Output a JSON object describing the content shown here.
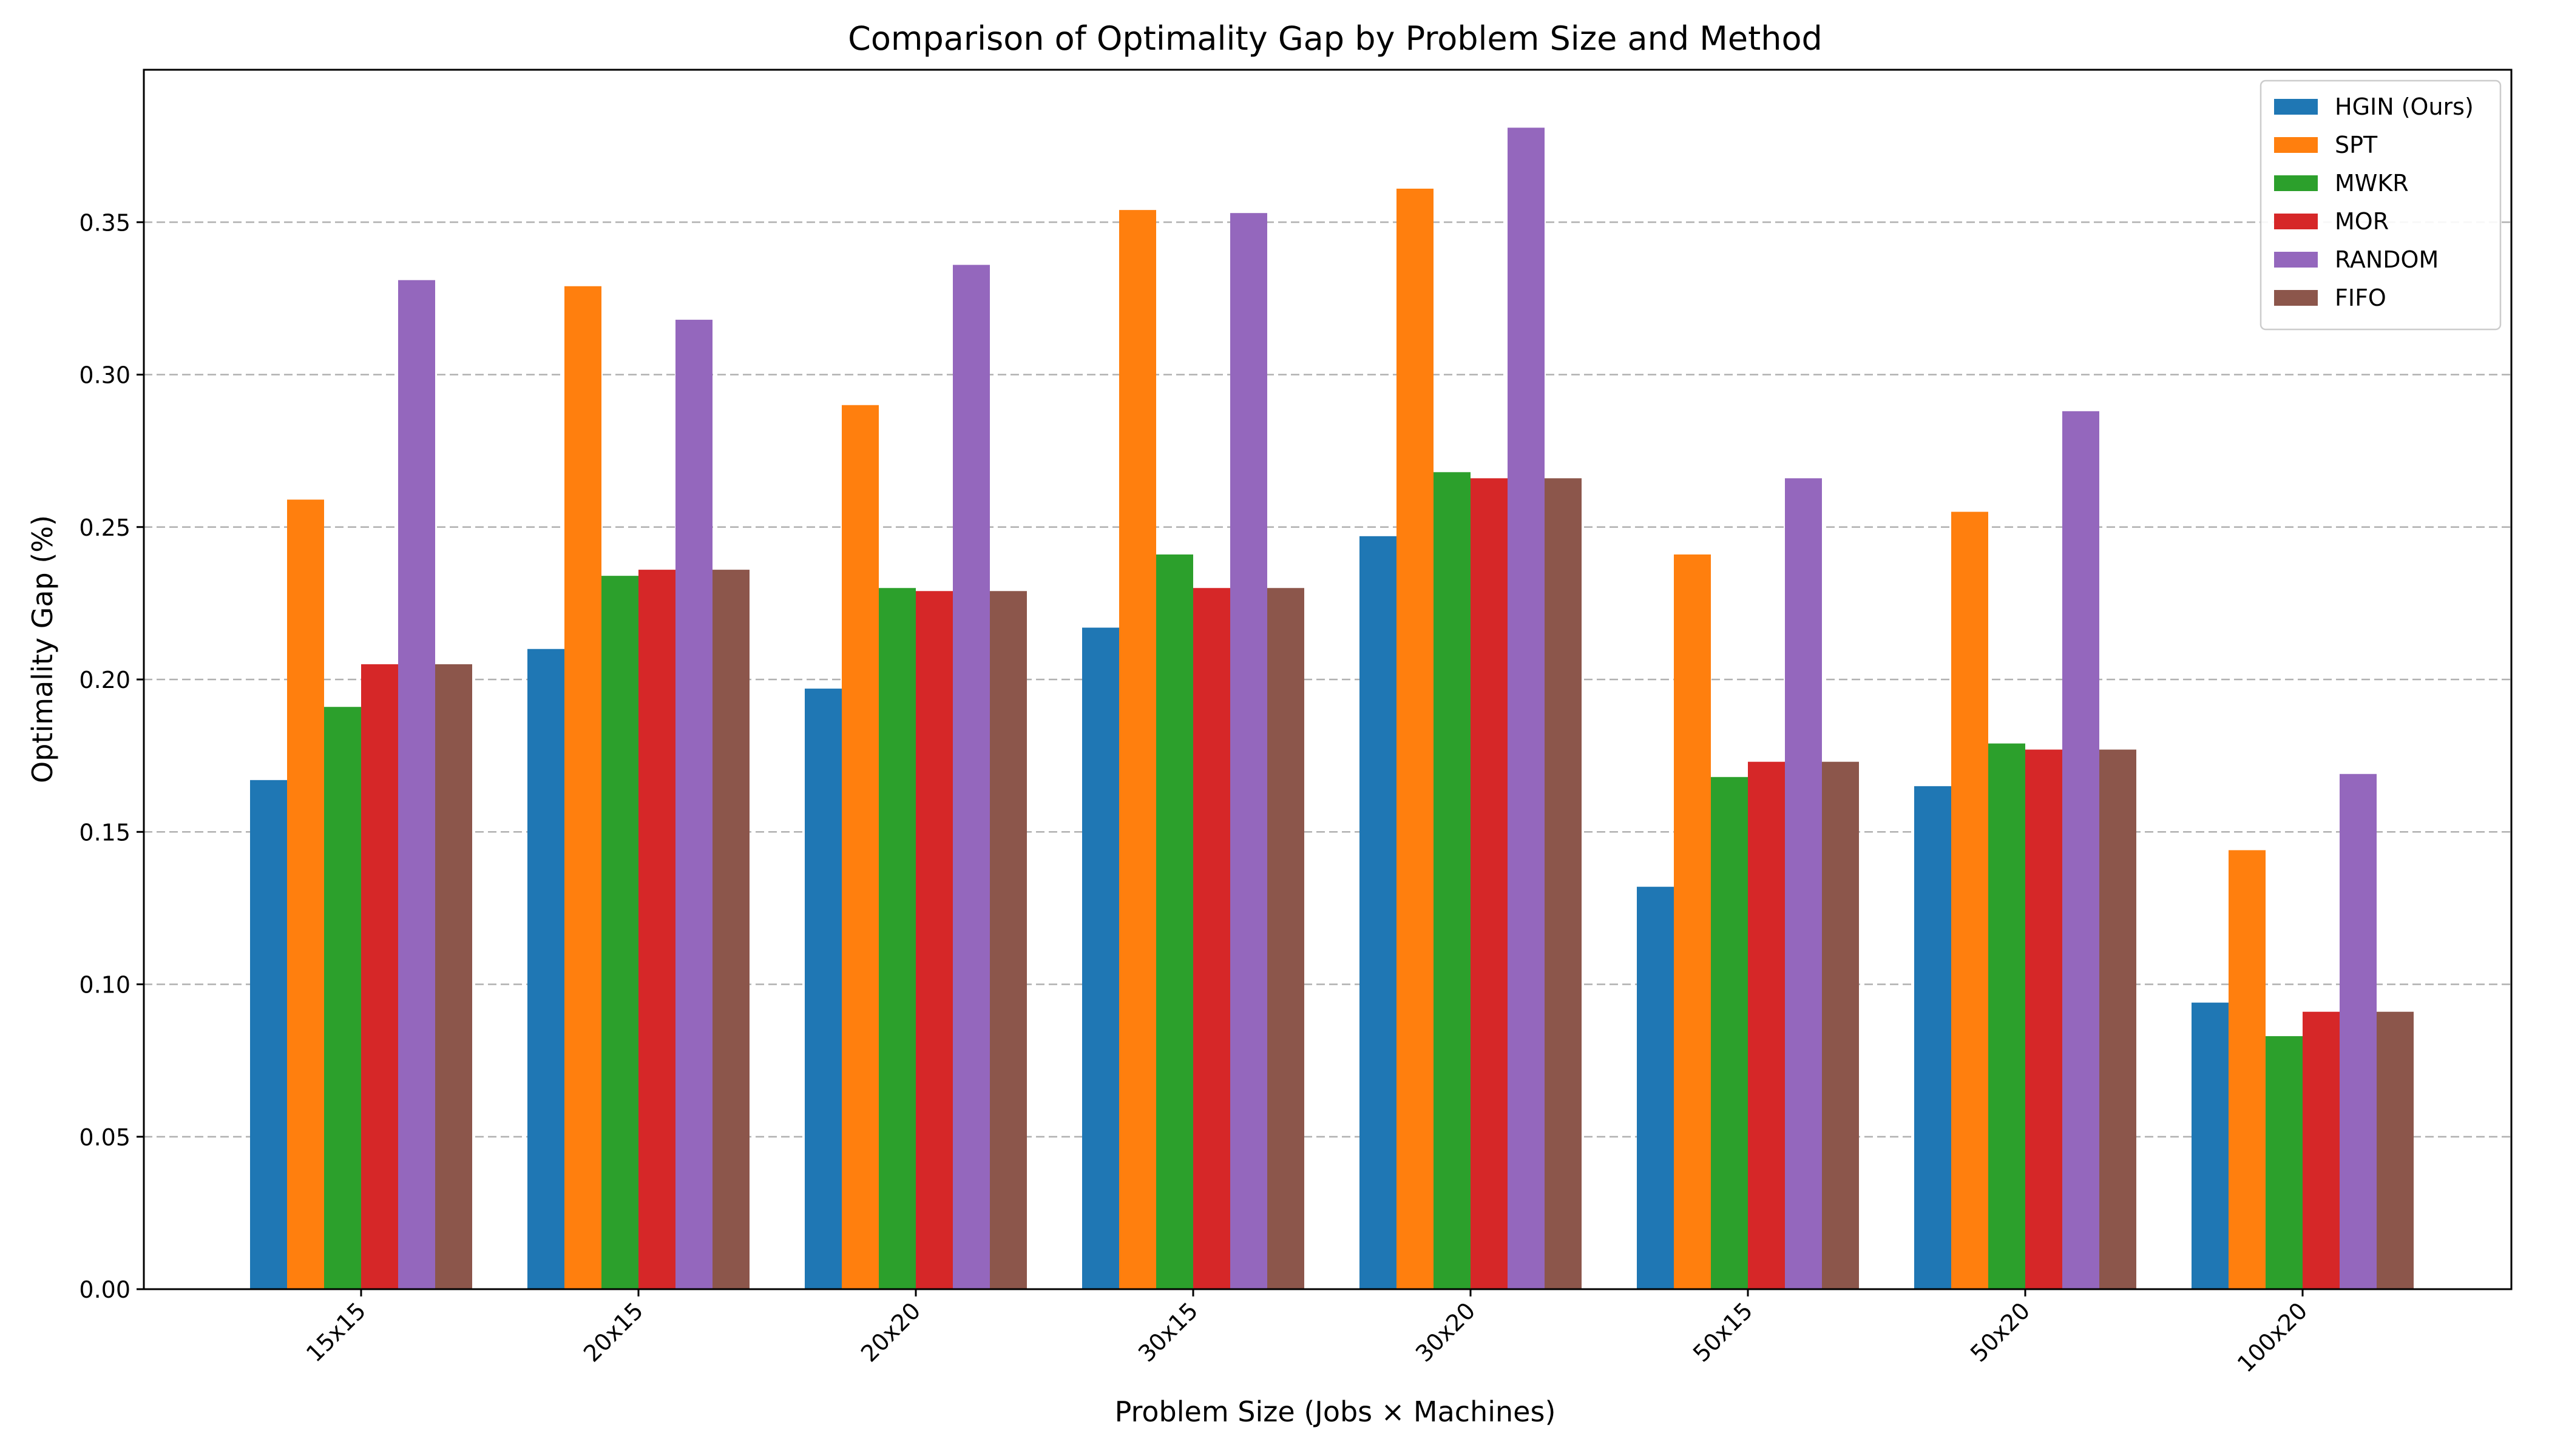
{
  "chart_data": {
    "type": "bar",
    "title": "Comparison of Optimality Gap by Problem Size and Method",
    "xlabel": "Problem Size (Jobs × Machines)",
    "ylabel": "Optimality Gap (%)",
    "ylim": [
      0,
      0.4
    ],
    "yticks": [
      0.0,
      0.05,
      0.1,
      0.15,
      0.2,
      0.25,
      0.3,
      0.35
    ],
    "ytick_labels": [
      "0.00",
      "0.05",
      "0.10",
      "0.15",
      "0.20",
      "0.25",
      "0.30",
      "0.35"
    ],
    "grid": "y-dashed",
    "legend_position": "top-right",
    "categories": [
      "15x15",
      "20x15",
      "20x20",
      "30x15",
      "30x20",
      "50x15",
      "50x20",
      "100x20"
    ],
    "series": [
      {
        "name": "HGIN (Ours)",
        "color": "#1f77b4",
        "values": [
          0.167,
          0.21,
          0.197,
          0.217,
          0.247,
          0.132,
          0.165,
          0.094
        ]
      },
      {
        "name": "SPT",
        "color": "#ff7f0e",
        "values": [
          0.259,
          0.329,
          0.29,
          0.354,
          0.361,
          0.241,
          0.255,
          0.144
        ]
      },
      {
        "name": "MWKR",
        "color": "#2ca02c",
        "values": [
          0.191,
          0.234,
          0.23,
          0.241,
          0.268,
          0.168,
          0.179,
          0.083
        ]
      },
      {
        "name": "MOR",
        "color": "#d62728",
        "values": [
          0.205,
          0.236,
          0.229,
          0.23,
          0.266,
          0.173,
          0.177,
          0.091
        ]
      },
      {
        "name": "RANDOM",
        "color": "#9467bd",
        "values": [
          0.331,
          0.318,
          0.336,
          0.353,
          0.381,
          0.266,
          0.288,
          0.169
        ]
      },
      {
        "name": "FIFO",
        "color": "#8c564b",
        "values": [
          0.205,
          0.236,
          0.229,
          0.23,
          0.266,
          0.173,
          0.177,
          0.091
        ]
      }
    ]
  }
}
